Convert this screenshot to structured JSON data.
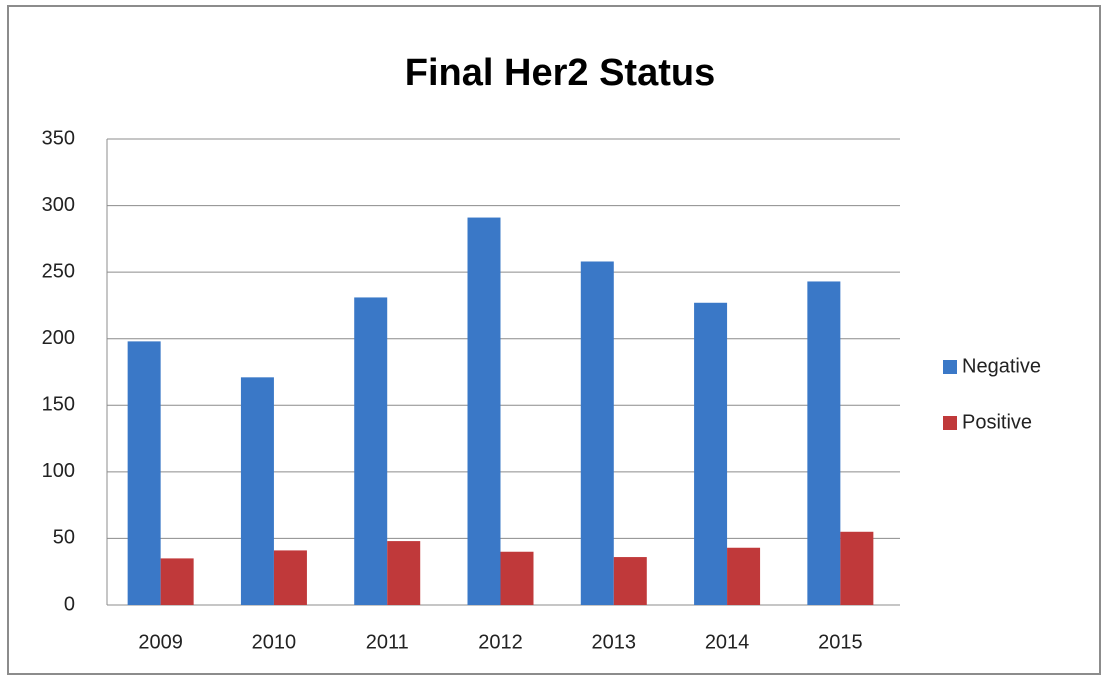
{
  "chart_data": {
    "type": "bar",
    "title": "Final Her2 Status",
    "categories": [
      "2009",
      "2010",
      "2011",
      "2012",
      "2013",
      "2014",
      "2015"
    ],
    "series": [
      {
        "name": "Negative",
        "color": "#3a78c7",
        "values": [
          198,
          171,
          231,
          291,
          258,
          227,
          243
        ]
      },
      {
        "name": "Positive",
        "color": "#c0393a",
        "values": [
          35,
          41,
          48,
          40,
          36,
          43,
          55
        ]
      }
    ],
    "ylim": [
      0,
      350
    ],
    "yticks": [
      0,
      50,
      100,
      150,
      200,
      250,
      300,
      350
    ],
    "grid": true,
    "legend": "right"
  }
}
